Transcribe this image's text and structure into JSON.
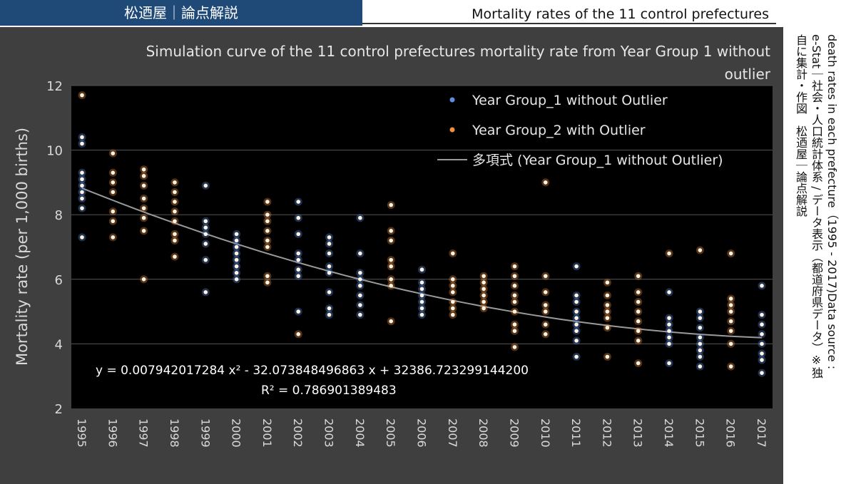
{
  "header": {
    "brand": "松迺屋｜論点解説",
    "topic": "Mortality rates of the 11 control prefectures"
  },
  "source": {
    "line1": "death rates in each prefecture（1995 - 2017)Data source :",
    "line2": "e-Stat｜社会・人口統計体系 / データ表示（都道府県データ）※独",
    "line3": "自に集計・作図　松迺屋｜論点解説"
  },
  "colors": {
    "group1": "#5b8fde",
    "group2": "#f0903c",
    "trend": "#9a9a9a",
    "plot_bg": "#000000",
    "panel_bg": "#3f3f3f"
  },
  "chart_data": {
    "type": "scatter",
    "title": "Simulation curve of the 11 control prefectures mortality rate from Year Group 1 without outlier",
    "xlabel": "",
    "ylabel": "Mortality rate (per 1,000 births)",
    "ylim": [
      2,
      12
    ],
    "yticks": [
      2,
      4,
      6,
      8,
      10,
      12
    ],
    "categories": [
      "1995",
      "1996",
      "1997",
      "1998",
      "1999",
      "2000",
      "2001",
      "2002",
      "2003",
      "2004",
      "2005",
      "2006",
      "2007",
      "2008",
      "2009",
      "2010",
      "2011",
      "2012",
      "2013",
      "2014",
      "2015",
      "2016",
      "2017"
    ],
    "grid": true,
    "legend_position": "top-right",
    "series": [
      {
        "name": "Year Group_1 without Outlier",
        "kind": "points",
        "color": "#5b8fde",
        "points": [
          [
            1995,
            10.4
          ],
          [
            1995,
            10.2
          ],
          [
            1995,
            9.3
          ],
          [
            1995,
            9.1
          ],
          [
            1995,
            8.9
          ],
          [
            1995,
            8.7
          ],
          [
            1995,
            8.5
          ],
          [
            1995,
            8.2
          ],
          [
            1995,
            7.3
          ],
          [
            1999,
            8.9
          ],
          [
            1999,
            7.8
          ],
          [
            1999,
            7.6
          ],
          [
            1999,
            7.4
          ],
          [
            1999,
            7.1
          ],
          [
            1999,
            6.6
          ],
          [
            1999,
            5.6
          ],
          [
            2000,
            7.4
          ],
          [
            2000,
            7.2
          ],
          [
            2000,
            7.0
          ],
          [
            2000,
            6.8
          ],
          [
            2000,
            6.6
          ],
          [
            2000,
            6.4
          ],
          [
            2000,
            6.2
          ],
          [
            2000,
            6.0
          ],
          [
            2002,
            8.4
          ],
          [
            2002,
            7.9
          ],
          [
            2002,
            7.4
          ],
          [
            2002,
            6.8
          ],
          [
            2002,
            6.6
          ],
          [
            2002,
            6.3
          ],
          [
            2002,
            6.1
          ],
          [
            2002,
            5.0
          ],
          [
            2003,
            7.3
          ],
          [
            2003,
            7.1
          ],
          [
            2003,
            6.8
          ],
          [
            2003,
            6.4
          ],
          [
            2003,
            6.2
          ],
          [
            2003,
            5.6
          ],
          [
            2003,
            5.1
          ],
          [
            2003,
            4.9
          ],
          [
            2004,
            7.9
          ],
          [
            2004,
            6.8
          ],
          [
            2004,
            6.2
          ],
          [
            2004,
            6.0
          ],
          [
            2004,
            5.8
          ],
          [
            2004,
            5.5
          ],
          [
            2004,
            5.2
          ],
          [
            2004,
            4.9
          ],
          [
            2006,
            6.3
          ],
          [
            2006,
            5.9
          ],
          [
            2006,
            5.7
          ],
          [
            2006,
            5.5
          ],
          [
            2006,
            5.3
          ],
          [
            2006,
            5.1
          ],
          [
            2006,
            4.9
          ],
          [
            2011,
            6.4
          ],
          [
            2011,
            5.5
          ],
          [
            2011,
            5.3
          ],
          [
            2011,
            5.0
          ],
          [
            2011,
            4.8
          ],
          [
            2011,
            4.6
          ],
          [
            2011,
            4.4
          ],
          [
            2011,
            4.1
          ],
          [
            2011,
            3.6
          ],
          [
            2014,
            5.6
          ],
          [
            2014,
            4.8
          ],
          [
            2014,
            4.6
          ],
          [
            2014,
            4.4
          ],
          [
            2014,
            4.2
          ],
          [
            2014,
            4.0
          ],
          [
            2014,
            3.4
          ],
          [
            2015,
            5.0
          ],
          [
            2015,
            4.8
          ],
          [
            2015,
            4.5
          ],
          [
            2015,
            4.2
          ],
          [
            2015,
            4.0
          ],
          [
            2015,
            3.8
          ],
          [
            2015,
            3.6
          ],
          [
            2015,
            3.3
          ],
          [
            2017,
            5.8
          ],
          [
            2017,
            4.9
          ],
          [
            2017,
            4.6
          ],
          [
            2017,
            4.3
          ],
          [
            2017,
            4.0
          ],
          [
            2017,
            3.7
          ],
          [
            2017,
            3.5
          ],
          [
            2017,
            3.1
          ]
        ]
      },
      {
        "name": "Year Group_2 with Outlier",
        "kind": "points",
        "color": "#f0903c",
        "points": [
          [
            1995,
            11.7
          ],
          [
            1996,
            9.9
          ],
          [
            1996,
            9.3
          ],
          [
            1996,
            9.0
          ],
          [
            1996,
            8.7
          ],
          [
            1996,
            8.1
          ],
          [
            1996,
            7.8
          ],
          [
            1996,
            7.3
          ],
          [
            1997,
            9.4
          ],
          [
            1997,
            9.2
          ],
          [
            1997,
            8.9
          ],
          [
            1997,
            8.5
          ],
          [
            1997,
            8.2
          ],
          [
            1997,
            7.9
          ],
          [
            1997,
            7.5
          ],
          [
            1997,
            6.0
          ],
          [
            1998,
            9.0
          ],
          [
            1998,
            8.7
          ],
          [
            1998,
            8.4
          ],
          [
            1998,
            8.1
          ],
          [
            1998,
            7.8
          ],
          [
            1998,
            7.4
          ],
          [
            1998,
            7.2
          ],
          [
            1998,
            6.7
          ],
          [
            2001,
            8.4
          ],
          [
            2001,
            8.0
          ],
          [
            2001,
            7.8
          ],
          [
            2001,
            7.5
          ],
          [
            2001,
            7.2
          ],
          [
            2001,
            7.0
          ],
          [
            2001,
            6.1
          ],
          [
            2001,
            5.9
          ],
          [
            2002,
            4.3
          ],
          [
            2005,
            8.3
          ],
          [
            2005,
            7.5
          ],
          [
            2005,
            7.2
          ],
          [
            2005,
            6.6
          ],
          [
            2005,
            6.4
          ],
          [
            2005,
            6.0
          ],
          [
            2005,
            5.8
          ],
          [
            2005,
            4.7
          ],
          [
            2007,
            6.8
          ],
          [
            2007,
            6.0
          ],
          [
            2007,
            5.8
          ],
          [
            2007,
            5.6
          ],
          [
            2007,
            5.3
          ],
          [
            2007,
            5.1
          ],
          [
            2007,
            4.9
          ],
          [
            2008,
            6.1
          ],
          [
            2008,
            5.9
          ],
          [
            2008,
            5.7
          ],
          [
            2008,
            5.5
          ],
          [
            2008,
            5.3
          ],
          [
            2008,
            5.1
          ],
          [
            2009,
            6.4
          ],
          [
            2009,
            6.1
          ],
          [
            2009,
            5.8
          ],
          [
            2009,
            5.5
          ],
          [
            2009,
            5.3
          ],
          [
            2009,
            5.0
          ],
          [
            2009,
            4.6
          ],
          [
            2009,
            4.4
          ],
          [
            2009,
            3.9
          ],
          [
            2010,
            9.0
          ],
          [
            2010,
            6.1
          ],
          [
            2010,
            5.6
          ],
          [
            2010,
            5.2
          ],
          [
            2010,
            5.0
          ],
          [
            2010,
            4.6
          ],
          [
            2010,
            4.3
          ],
          [
            2012,
            5.9
          ],
          [
            2012,
            5.5
          ],
          [
            2012,
            5.2
          ],
          [
            2012,
            5.0
          ],
          [
            2012,
            4.8
          ],
          [
            2012,
            4.5
          ],
          [
            2012,
            3.6
          ],
          [
            2013,
            6.1
          ],
          [
            2013,
            5.6
          ],
          [
            2013,
            5.3
          ],
          [
            2013,
            5.0
          ],
          [
            2013,
            4.7
          ],
          [
            2013,
            4.4
          ],
          [
            2013,
            4.1
          ],
          [
            2013,
            3.4
          ],
          [
            2014,
            6.8
          ],
          [
            2015,
            6.9
          ],
          [
            2016,
            6.8
          ],
          [
            2016,
            5.4
          ],
          [
            2016,
            5.2
          ],
          [
            2016,
            5.0
          ],
          [
            2016,
            4.7
          ],
          [
            2016,
            4.4
          ],
          [
            2016,
            4.0
          ],
          [
            2016,
            3.3
          ]
        ]
      },
      {
        "name": "多項式 (Year Group_1 without Outlier)",
        "kind": "trendline",
        "color": "#9a9a9a",
        "coefficients": [
          0.007942017284,
          -32.073848496863,
          32386.7232991442
        ]
      }
    ],
    "annotations": {
      "equation": "y = 0.007942017284 x² - 32.073848496863 x + 32386.723299144200",
      "r_squared": "R² = 0.786901389483"
    }
  }
}
